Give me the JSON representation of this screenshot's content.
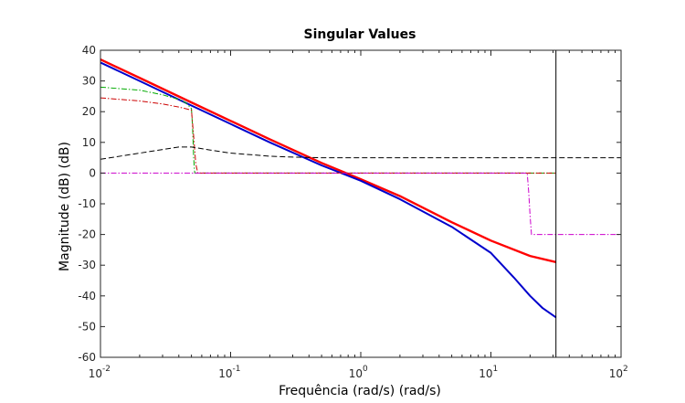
{
  "chart_data": {
    "type": "line",
    "title": "Singular Values",
    "xlabel": "Frequência (rad/s) (rad/s)",
    "ylabel": "Magnitude (dB) (dB)",
    "xscale": "log",
    "xlim": [
      0.01,
      100
    ],
    "ylim": [
      -60,
      40
    ],
    "grid": false,
    "legend": "none",
    "x_ticks": [
      {
        "value": 0.01,
        "base": "10",
        "exp": "-2"
      },
      {
        "value": 0.1,
        "base": "10",
        "exp": "-1"
      },
      {
        "value": 1,
        "base": "10",
        "exp": "0"
      },
      {
        "value": 10,
        "base": "10",
        "exp": "1"
      },
      {
        "value": 100,
        "base": "10",
        "exp": "2"
      }
    ],
    "y_ticks": [
      "40",
      "30",
      "20",
      "10",
      "0",
      "-10",
      "-20",
      "-30",
      "-40",
      "-50",
      "-60"
    ],
    "vline_x": 31.6,
    "series": [
      {
        "color": "#ff0000",
        "style": "solid",
        "width": 2.4,
        "x": [
          0.01,
          0.02,
          0.05,
          0.1,
          0.2,
          0.5,
          1,
          2,
          5,
          10,
          20,
          31.6
        ],
        "y": [
          37,
          31,
          23,
          17,
          11,
          3.3,
          -2,
          -7.5,
          -16,
          -22,
          -27,
          -29
        ]
      },
      {
        "color": "#0000cc",
        "style": "solid",
        "width": 2.0,
        "x": [
          0.01,
          0.02,
          0.05,
          0.1,
          0.2,
          0.5,
          1,
          2,
          5,
          10,
          15,
          20,
          25,
          31.6
        ],
        "y": [
          36,
          30,
          22,
          16,
          10,
          2.5,
          -2.5,
          -8.5,
          -17.5,
          -26,
          -34,
          -40,
          -44,
          -47
        ]
      },
      {
        "color": "#00aa00",
        "style": "dashdot",
        "width": 1.0,
        "x": [
          0.01,
          0.02,
          0.03,
          0.04,
          0.045,
          0.05,
          0.051,
          0.052,
          0.053,
          31.6
        ],
        "y": [
          28,
          27,
          25.5,
          24,
          23,
          21,
          15,
          5,
          0,
          0
        ]
      },
      {
        "color": "#cc0000",
        "style": "dashdot",
        "width": 1.0,
        "x": [
          0.01,
          0.02,
          0.03,
          0.04,
          0.045,
          0.05,
          0.052,
          0.054,
          0.056,
          31.6
        ],
        "y": [
          24.5,
          23.5,
          22.5,
          21.5,
          21,
          20.5,
          12,
          3,
          0,
          0
        ]
      },
      {
        "color": "#000000",
        "style": "dashed",
        "width": 1.0,
        "x": [
          0.01,
          0.02,
          0.04,
          0.05,
          0.07,
          0.1,
          0.2,
          0.3,
          0.5,
          1,
          3,
          31.6,
          100
        ],
        "y": [
          4.5,
          6.5,
          8.5,
          8.5,
          7.5,
          6.5,
          5.5,
          5.2,
          5,
          5,
          5,
          5,
          5
        ]
      },
      {
        "color": "#cc00cc",
        "style": "dashdot",
        "width": 1.0,
        "x": [
          0.01,
          19,
          19.5,
          20,
          20.5,
          100
        ],
        "y": [
          0,
          0,
          -6,
          -14,
          -20,
          -20
        ]
      }
    ]
  }
}
